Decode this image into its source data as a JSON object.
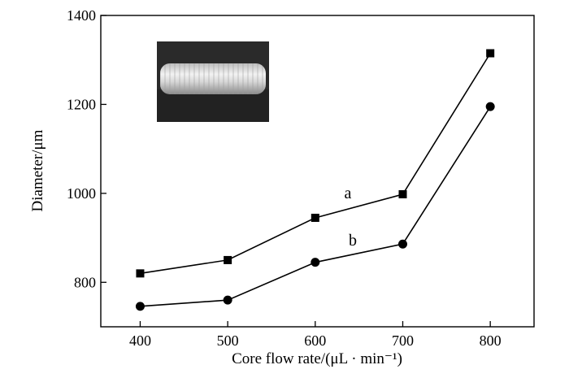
{
  "chart_data": {
    "type": "line",
    "title": "",
    "xlabel": "Core flow rate/(μL · min⁻¹)",
    "ylabel": "Diameter/μm",
    "xlim": [
      355,
      850
    ],
    "ylim": [
      700,
      1400
    ],
    "x_ticks": [
      400,
      500,
      600,
      700,
      800
    ],
    "y_ticks": [
      800,
      1000,
      1200,
      1400
    ],
    "grid": false,
    "legend": "none",
    "series": [
      {
        "name": "a",
        "marker": "square",
        "x": [
          400,
          500,
          600,
          700,
          800
        ],
        "values": [
          820,
          850,
          945,
          998,
          1315
        ]
      },
      {
        "name": "b",
        "marker": "circle",
        "x": [
          400,
          500,
          600,
          700,
          800
        ],
        "values": [
          746,
          760,
          845,
          886,
          1195
        ]
      }
    ],
    "inset": "photograph of cylindrical fiber segment"
  },
  "colors": {
    "line": "#000000",
    "inset_bg": "#2a2a2a"
  }
}
